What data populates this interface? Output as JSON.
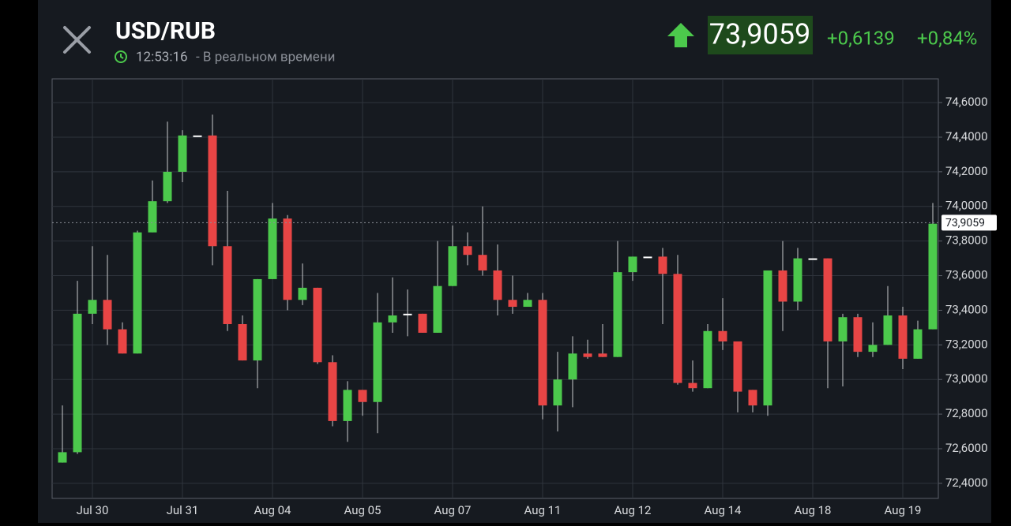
{
  "header": {
    "symbol": "USD/RUB",
    "time": "12:53:16",
    "status": "- В реальном времени",
    "price": "73,9059",
    "change": "+0,6139",
    "change_percent": "+0,84%"
  },
  "chart_data": {
    "type": "candlestick",
    "categories": [
      null,
      null,
      "Jul 30",
      null,
      null,
      null,
      null,
      null,
      "Jul 31",
      null,
      null,
      null,
      null,
      null,
      "Aug 04",
      null,
      null,
      null,
      null,
      null,
      "Aug 05",
      null,
      null,
      null,
      null,
      null,
      "Aug 07",
      null,
      null,
      null,
      null,
      null,
      "Aug 11",
      null,
      null,
      null,
      null,
      null,
      "Aug 12",
      null,
      null,
      null,
      null,
      null,
      "Aug 14",
      null,
      null,
      null,
      null,
      null,
      "Aug 18",
      null,
      null,
      null,
      null,
      null,
      "Aug 19",
      null,
      null
    ],
    "series": {
      "open": [
        72.52,
        72.58,
        73.38,
        73.46,
        73.29,
        73.15,
        73.85,
        74.03,
        74.2,
        74.41,
        74.41,
        73.77,
        73.32,
        73.11,
        73.58,
        73.93,
        73.46,
        73.53,
        73.1,
        72.76,
        72.94,
        72.87,
        73.33,
        73.38,
        73.38,
        73.27,
        73.54,
        73.77,
        73.72,
        73.63,
        73.46,
        73.42,
        73.46,
        72.85,
        73.0,
        73.15,
        73.15,
        73.13,
        73.62,
        73.71,
        73.71,
        73.61,
        72.98,
        72.95,
        73.28,
        73.22,
        72.94,
        72.85,
        73.63,
        73.45,
        73.7,
        73.7,
        73.22,
        73.36,
        73.16,
        73.2,
        73.37,
        73.12,
        73.29
      ],
      "high": [
        72.85,
        73.57,
        73.77,
        73.72,
        73.33,
        73.86,
        74.15,
        74.49,
        74.44,
        74.41,
        74.53,
        74.09,
        73.37,
        73.58,
        74.02,
        73.95,
        73.67,
        73.53,
        73.14,
        72.99,
        72.94,
        73.5,
        73.59,
        73.52,
        73.38,
        73.8,
        73.89,
        73.85,
        74.0,
        73.78,
        73.6,
        73.5,
        73.5,
        73.16,
        73.25,
        73.23,
        73.32,
        73.8,
        73.71,
        73.71,
        73.76,
        73.72,
        73.11,
        73.32,
        73.47,
        73.22,
        72.94,
        73.63,
        73.8,
        73.76,
        73.7,
        73.7,
        73.38,
        73.38,
        73.33,
        73.54,
        73.42,
        73.34,
        74.02
      ],
      "low": [
        72.52,
        72.57,
        73.32,
        73.2,
        73.15,
        73.15,
        73.85,
        74.02,
        74.14,
        74.41,
        73.66,
        73.28,
        73.11,
        72.95,
        73.58,
        73.4,
        73.43,
        73.09,
        72.73,
        72.64,
        72.79,
        72.69,
        73.27,
        73.25,
        73.27,
        73.27,
        73.54,
        73.66,
        73.6,
        73.37,
        73.38,
        73.42,
        72.77,
        72.7,
        72.84,
        73.12,
        73.13,
        73.13,
        73.57,
        73.71,
        73.32,
        72.97,
        72.93,
        72.95,
        73.17,
        72.81,
        72.81,
        72.79,
        73.28,
        73.4,
        73.7,
        72.95,
        72.96,
        73.13,
        73.13,
        73.2,
        73.06,
        73.12,
        73.29
      ],
      "close": [
        72.58,
        73.38,
        73.46,
        73.29,
        73.15,
        73.85,
        74.03,
        74.2,
        74.41,
        74.41,
        73.77,
        73.32,
        73.11,
        73.58,
        73.93,
        73.46,
        73.53,
        73.1,
        72.76,
        72.94,
        72.87,
        73.33,
        73.37,
        73.38,
        73.27,
        73.54,
        73.77,
        73.72,
        73.63,
        73.46,
        73.42,
        73.46,
        72.85,
        73.0,
        73.15,
        73.13,
        73.13,
        73.62,
        73.71,
        73.71,
        73.61,
        72.98,
        72.95,
        73.28,
        73.22,
        72.93,
        72.85,
        73.63,
        73.45,
        73.7,
        73.7,
        73.22,
        73.36,
        73.16,
        73.2,
        73.37,
        73.12,
        73.29,
        73.9
      ]
    },
    "up_color": "#4cc94c",
    "down_color": "#e84545",
    "ylim": [
      72.313,
      74.737
    ],
    "yticks": [
      {
        "value": 72.4,
        "label": "72,4000"
      },
      {
        "value": 72.6,
        "label": "72,6000"
      },
      {
        "value": 72.8,
        "label": "72,8000"
      },
      {
        "value": 73.0,
        "label": "73,0000"
      },
      {
        "value": 73.2,
        "label": "73,2000"
      },
      {
        "value": 73.4,
        "label": "73,4000"
      },
      {
        "value": 73.6,
        "label": "73,6000"
      },
      {
        "value": 73.8,
        "label": "73,8000"
      },
      {
        "value": 74.0,
        "label": "74,0000"
      },
      {
        "value": 74.2,
        "label": "74,2000"
      },
      {
        "value": 74.4,
        "label": "74,4000"
      },
      {
        "value": 74.6,
        "label": "74,6000"
      }
    ],
    "last_price": {
      "value": 73.9059,
      "label": "73,9059"
    },
    "grid": true
  }
}
